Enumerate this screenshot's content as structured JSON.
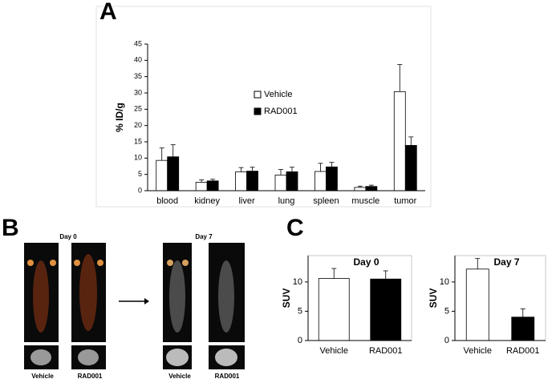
{
  "chart_data": [
    {
      "type": "bar",
      "ylabel": "% ID/g",
      "categories": [
        "blood",
        "kidney",
        "liver",
        "lung",
        "spleen",
        "muscle",
        "tumor"
      ],
      "series": [
        {
          "name": "Vehicle",
          "color": "#ffffff",
          "values": [
            9.3,
            2.6,
            5.8,
            4.8,
            5.9,
            1.0,
            30.4
          ],
          "errors": [
            3.8,
            0.7,
            1.3,
            1.7,
            2.5,
            0.4,
            8.3
          ]
        },
        {
          "name": "RAD001",
          "color": "#000000",
          "values": [
            10.4,
            3.0,
            6.0,
            5.8,
            7.3,
            1.3,
            13.9
          ],
          "errors": [
            3.7,
            0.5,
            1.2,
            1.4,
            1.4,
            0.4,
            2.6
          ]
        }
      ],
      "ylim": [
        0,
        45
      ],
      "yticks": [
        0,
        5,
        10,
        15,
        20,
        25,
        30,
        35,
        40,
        45
      ]
    },
    {
      "type": "bar",
      "title": "Day 0",
      "ylabel": "SUV",
      "categories": [
        "Vehicle",
        "RAD001"
      ],
      "values": [
        10.6,
        10.5
      ],
      "errors": [
        1.7,
        1.4
      ],
      "colors": [
        "#ffffff",
        "#000000"
      ],
      "ylim": [
        0,
        14.5
      ],
      "yticks": [
        0,
        5,
        10
      ]
    },
    {
      "type": "bar",
      "title": "Day 7",
      "ylabel": "SUV",
      "categories": [
        "Vehicle",
        "RAD001"
      ],
      "values": [
        12.2,
        4.0
      ],
      "errors": [
        1.8,
        1.4
      ],
      "colors": [
        "#ffffff",
        "#000000"
      ],
      "ylim": [
        0,
        14.5
      ],
      "yticks": [
        0,
        5,
        10
      ]
    }
  ],
  "figure": {
    "panel_labels": [
      "A",
      "B",
      "C"
    ],
    "panel_b": {
      "days": [
        "Day 0",
        "Day 7"
      ],
      "groups": [
        "Vehicle",
        "RAD001",
        "Vehicle",
        "RAD001"
      ]
    }
  }
}
